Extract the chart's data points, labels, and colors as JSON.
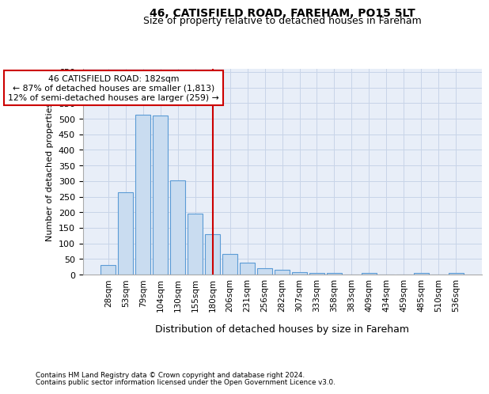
{
  "title_line1": "46, CATISFIELD ROAD, FAREHAM, PO15 5LT",
  "title_line2": "Size of property relative to detached houses in Fareham",
  "xlabel": "Distribution of detached houses by size in Fareham",
  "ylabel": "Number of detached properties",
  "footer_line1": "Contains HM Land Registry data © Crown copyright and database right 2024.",
  "footer_line2": "Contains public sector information licensed under the Open Government Licence v3.0.",
  "annotation_line1": "46 CATISFIELD ROAD: 182sqm",
  "annotation_line2": "← 87% of detached houses are smaller (1,813)",
  "annotation_line3": "12% of semi-detached houses are larger (259) →",
  "categories": [
    "28sqm",
    "53sqm",
    "79sqm",
    "104sqm",
    "130sqm",
    "155sqm",
    "180sqm",
    "206sqm",
    "231sqm",
    "256sqm",
    "282sqm",
    "307sqm",
    "333sqm",
    "358sqm",
    "383sqm",
    "409sqm",
    "434sqm",
    "459sqm",
    "485sqm",
    "510sqm",
    "536sqm"
  ],
  "values": [
    30,
    263,
    513,
    510,
    302,
    196,
    130,
    65,
    38,
    21,
    14,
    8,
    4,
    4,
    0,
    4,
    0,
    0,
    4,
    0,
    4
  ],
  "bar_color": "#c9dcf0",
  "bar_edge_color": "#5b9bd5",
  "red_line_color": "#cc0000",
  "annotation_box_edge": "#cc0000",
  "grid_color": "#c8d4e8",
  "ax_bg_color": "#e8eef8",
  "ylim": [
    0,
    660
  ],
  "yticks": [
    0,
    50,
    100,
    150,
    200,
    250,
    300,
    350,
    400,
    450,
    500,
    550,
    600,
    650
  ],
  "property_line_index": 6
}
